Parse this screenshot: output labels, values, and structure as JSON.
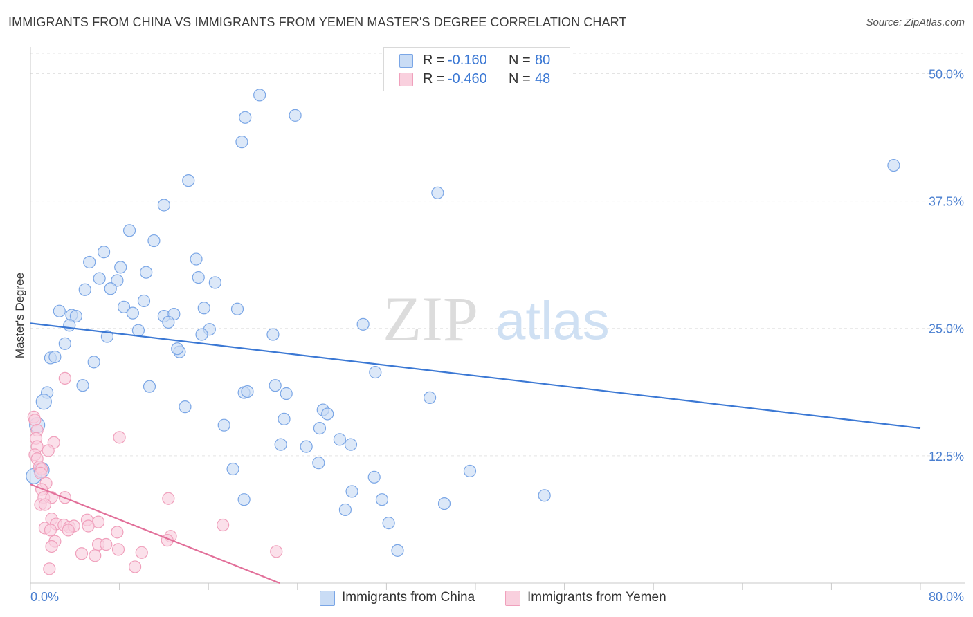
{
  "title": "IMMIGRANTS FROM CHINA VS IMMIGRANTS FROM YEMEN MASTER'S DEGREE CORRELATION CHART",
  "source": "Source: ZipAtlas.com",
  "watermark": {
    "zip": "ZIP",
    "atlas": "atlas"
  },
  "legend": {
    "rows": [
      {
        "r_label": "R =",
        "r_value": "-0.160",
        "n_label": "N =",
        "n_value": "80",
        "color": "#7aa6e6",
        "fill": "#c9dcf5"
      },
      {
        "r_label": "R =",
        "r_value": "-0.460",
        "n_label": "N =",
        "n_value": "48",
        "color": "#f0a0bc",
        "fill": "#f9d0de"
      }
    ]
  },
  "bottom_legend": [
    {
      "label": "Immigrants from China",
      "color": "#7aa6e6",
      "fill": "#c9dcf5"
    },
    {
      "label": "Immigrants from Yemen",
      "color": "#f0a0bc",
      "fill": "#f9d0de"
    }
  ],
  "chart_data": {
    "type": "scatter",
    "title": "IMMIGRANTS FROM CHINA VS IMMIGRANTS FROM YEMEN MASTER'S DEGREE CORRELATION CHART",
    "xlabel": "",
    "ylabel": "Master's Degree",
    "xlim": [
      0,
      80
    ],
    "ylim": [
      0,
      52
    ],
    "x_tick_labels": [
      "0.0%",
      "80.0%"
    ],
    "y_ticks": [
      12.5,
      25.0,
      37.5,
      50.0
    ],
    "y_tick_labels": [
      "12.5%",
      "25.0%",
      "37.5%",
      "50.0%"
    ],
    "grid": "horizontal dashed",
    "legend_position": "top-center",
    "series": [
      {
        "name": "Immigrants from China",
        "color": "#7aa6e6",
        "fill": "#c9dcf5",
        "trend_color": "#3b78d4",
        "trend": {
          "x": [
            0,
            80
          ],
          "y": [
            25.5,
            15.2
          ]
        },
        "points": [
          [
            20.6,
            47.9
          ],
          [
            19.3,
            45.7
          ],
          [
            23.8,
            45.9
          ],
          [
            19.0,
            43.3
          ],
          [
            14.2,
            39.5
          ],
          [
            36.6,
            38.3
          ],
          [
            77.6,
            41.0
          ],
          [
            12.0,
            37.1
          ],
          [
            8.9,
            34.6
          ],
          [
            11.1,
            33.6
          ],
          [
            6.6,
            32.5
          ],
          [
            14.9,
            31.8
          ],
          [
            5.3,
            31.5
          ],
          [
            8.1,
            31.0
          ],
          [
            10.4,
            30.5
          ],
          [
            6.2,
            29.9
          ],
          [
            7.8,
            29.7
          ],
          [
            15.1,
            30.0
          ],
          [
            16.6,
            29.5
          ],
          [
            4.9,
            28.8
          ],
          [
            7.2,
            28.9
          ],
          [
            10.2,
            27.7
          ],
          [
            8.4,
            27.1
          ],
          [
            15.6,
            27.0
          ],
          [
            18.6,
            26.9
          ],
          [
            2.6,
            26.7
          ],
          [
            3.7,
            26.3
          ],
          [
            4.1,
            26.2
          ],
          [
            9.2,
            26.5
          ],
          [
            12.0,
            26.2
          ],
          [
            12.9,
            26.4
          ],
          [
            3.5,
            25.3
          ],
          [
            12.4,
            25.6
          ],
          [
            9.7,
            24.8
          ],
          [
            16.1,
            24.9
          ],
          [
            15.4,
            24.4
          ],
          [
            21.8,
            24.4
          ],
          [
            29.9,
            25.4
          ],
          [
            6.9,
            24.2
          ],
          [
            3.1,
            23.5
          ],
          [
            13.4,
            22.7
          ],
          [
            13.2,
            23.0
          ],
          [
            1.8,
            22.1
          ],
          [
            2.2,
            22.2
          ],
          [
            5.7,
            21.7
          ],
          [
            31.0,
            20.7
          ],
          [
            1.5,
            18.7
          ],
          [
            4.7,
            19.4
          ],
          [
            10.7,
            19.3
          ],
          [
            22.0,
            19.4
          ],
          [
            19.2,
            18.7
          ],
          [
            19.5,
            18.8
          ],
          [
            23.0,
            18.6
          ],
          [
            35.9,
            18.2
          ],
          [
            1.2,
            17.8
          ],
          [
            13.9,
            17.3
          ],
          [
            26.3,
            17.0
          ],
          [
            26.7,
            16.6
          ],
          [
            22.8,
            16.1
          ],
          [
            17.4,
            15.5
          ],
          [
            0.6,
            15.5
          ],
          [
            26.0,
            15.2
          ],
          [
            27.8,
            14.1
          ],
          [
            22.5,
            13.6
          ],
          [
            24.8,
            13.4
          ],
          [
            28.8,
            13.6
          ],
          [
            25.9,
            11.8
          ],
          [
            18.2,
            11.2
          ],
          [
            39.5,
            11.0
          ],
          [
            30.9,
            10.4
          ],
          [
            28.9,
            9.0
          ],
          [
            19.2,
            8.2
          ],
          [
            31.6,
            8.2
          ],
          [
            46.2,
            8.6
          ],
          [
            37.2,
            7.8
          ],
          [
            28.3,
            7.2
          ],
          [
            32.2,
            5.9
          ],
          [
            33.0,
            3.2
          ],
          [
            0.3,
            10.5
          ],
          [
            1.0,
            11.1
          ]
        ]
      },
      {
        "name": "Immigrants from Yemen",
        "color": "#f0a0bc",
        "fill": "#f9d0de",
        "trend_color": "#e2709a",
        "trend": {
          "x": [
            0,
            22.4
          ],
          "y": [
            9.7,
            0
          ]
        },
        "points": [
          [
            3.1,
            20.1
          ],
          [
            0.3,
            16.3
          ],
          [
            0.4,
            16.0
          ],
          [
            0.6,
            15.0
          ],
          [
            0.5,
            14.2
          ],
          [
            2.1,
            13.8
          ],
          [
            8.0,
            14.3
          ],
          [
            0.6,
            13.4
          ],
          [
            1.6,
            13.0
          ],
          [
            0.4,
            12.6
          ],
          [
            0.6,
            12.2
          ],
          [
            0.8,
            11.4
          ],
          [
            1.0,
            11.2
          ],
          [
            0.9,
            10.8
          ],
          [
            1.4,
            9.8
          ],
          [
            1.0,
            9.2
          ],
          [
            1.2,
            8.4
          ],
          [
            1.9,
            8.4
          ],
          [
            3.1,
            8.4
          ],
          [
            12.4,
            8.3
          ],
          [
            0.9,
            7.7
          ],
          [
            1.3,
            7.7
          ],
          [
            1.9,
            6.3
          ],
          [
            5.1,
            6.2
          ],
          [
            6.1,
            6.0
          ],
          [
            2.3,
            5.8
          ],
          [
            3.0,
            5.7
          ],
          [
            3.5,
            5.5
          ],
          [
            3.9,
            5.6
          ],
          [
            5.2,
            5.6
          ],
          [
            17.3,
            5.7
          ],
          [
            1.3,
            5.4
          ],
          [
            1.8,
            5.2
          ],
          [
            3.4,
            5.2
          ],
          [
            7.8,
            5.0
          ],
          [
            12.6,
            4.6
          ],
          [
            12.3,
            4.2
          ],
          [
            2.2,
            4.1
          ],
          [
            1.9,
            3.6
          ],
          [
            6.1,
            3.8
          ],
          [
            6.8,
            3.8
          ],
          [
            7.9,
            3.3
          ],
          [
            4.6,
            2.9
          ],
          [
            5.8,
            2.7
          ],
          [
            10.0,
            3.0
          ],
          [
            22.1,
            3.1
          ],
          [
            9.4,
            1.6
          ],
          [
            1.7,
            1.4
          ]
        ]
      }
    ]
  }
}
